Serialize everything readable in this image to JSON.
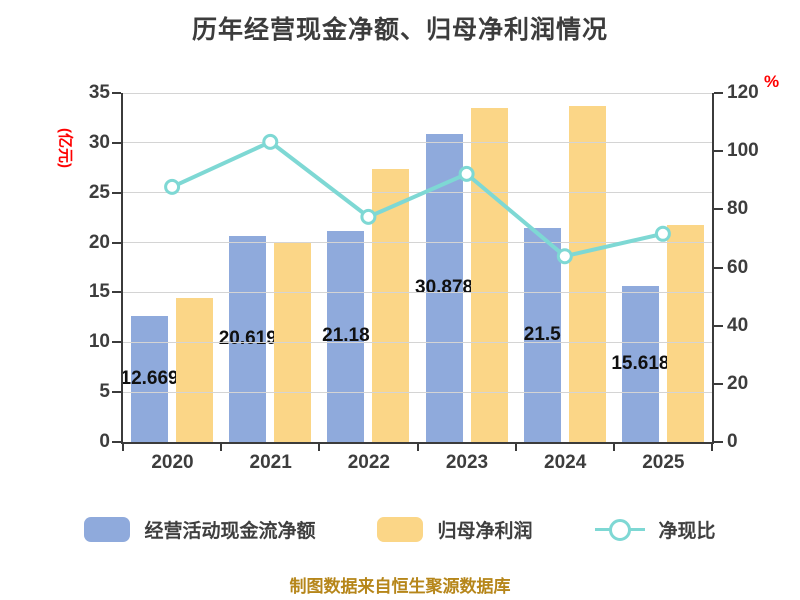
{
  "title": "历年经营现金净额、归母净利润情况",
  "caption": "制图数据来自恒生聚源数据库",
  "chart_data": {
    "type": "bar",
    "subtype": "grouped-bars-with-line-overlay",
    "title": "历年经营现金净额、归母净利润情况",
    "categories": [
      "2020",
      "2021",
      "2022",
      "2023",
      "2024",
      "2025"
    ],
    "series": [
      {
        "name": "经营活动现金流净额",
        "kind": "bar",
        "axis": "left",
        "color": "#8FAADC",
        "values": [
          12.669,
          20.619,
          21.18,
          30.878,
          21.5,
          15.618
        ],
        "data_labels": [
          "12.669",
          "20.619",
          "21.18",
          "30.878",
          "21.5",
          "15.618"
        ]
      },
      {
        "name": "归母净利润",
        "kind": "bar",
        "axis": "left",
        "color": "#FBD687",
        "values": [
          14.4,
          20.0,
          27.4,
          33.5,
          33.7,
          21.8
        ],
        "values_estimated_from_pixels": true
      },
      {
        "name": "净现比",
        "kind": "line",
        "axis": "right",
        "color": "#7ED8D4",
        "marker": "circle-white-fill",
        "values": [
          87.7,
          103.2,
          77.4,
          92.2,
          63.9,
          71.6
        ],
        "values_estimated_from_pixels": true
      }
    ],
    "left_axis": {
      "unit_label": "(亿元)",
      "unit_color": "#FF0000",
      "min": 0,
      "max": 35,
      "step": 5,
      "tick_labels": [
        "0",
        "5",
        "10",
        "15",
        "20",
        "25",
        "30",
        "35"
      ]
    },
    "right_axis": {
      "unit_label": "%",
      "unit_color": "#FF0000",
      "min": 0,
      "max": 120,
      "step": 20,
      "tick_labels": [
        "0",
        "20",
        "40",
        "60",
        "80",
        "100",
        "120"
      ]
    },
    "grid": "horizontal",
    "legend_position": "bottom",
    "style": {
      "background": "#FFFFFF",
      "axis_color": "#3B3B3B",
      "grid_color": "#D4D4D4",
      "tick_label_color": "#3D3D3D",
      "bar_label_color": "#101010",
      "title_color": "#3C3C3C",
      "legend_text_color": "#3F3F3F",
      "caption_color": "#B6861A"
    }
  }
}
